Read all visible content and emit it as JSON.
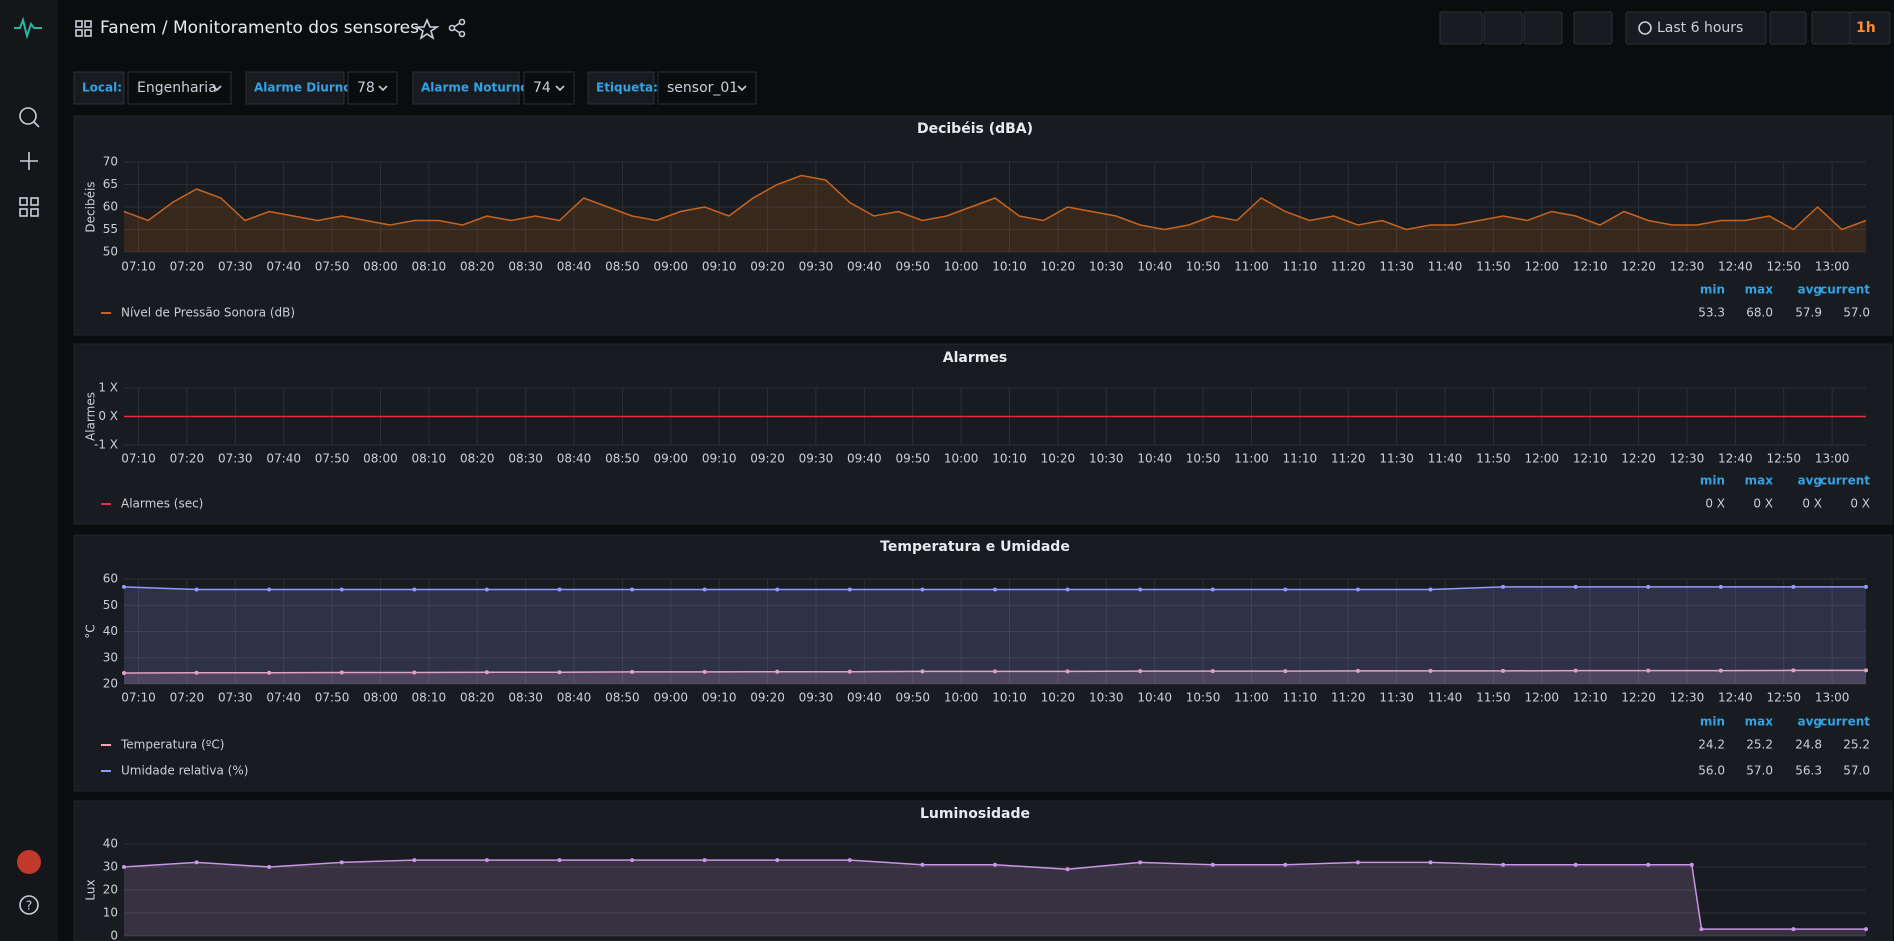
{
  "header": {
    "title": "Fanem / Monitoramento dos sensores",
    "time_range": "Last 6 hours",
    "refresh": "1h"
  },
  "variables": [
    {
      "label": "Local:",
      "value": "Engenharia"
    },
    {
      "label": "Alarme Diurno:",
      "value": 78
    },
    {
      "label": "Alarme Noturno:",
      "value": 74
    },
    {
      "label": "Etiqueta:",
      "value": "sensor_01"
    }
  ],
  "chart_data": [
    {
      "type": "line",
      "title": "Decibéis (dBA)",
      "y_label": "Decibéis",
      "x": [
        "07:07",
        "07:12",
        "07:17",
        "07:22",
        "07:27",
        "07:32",
        "07:37",
        "07:42",
        "07:47",
        "07:52",
        "07:57",
        "08:02",
        "08:07",
        "08:12",
        "08:17",
        "08:22",
        "08:27",
        "08:32",
        "08:37",
        "08:42",
        "08:47",
        "08:52",
        "08:57",
        "09:02",
        "09:07",
        "09:12",
        "09:17",
        "09:22",
        "09:27",
        "09:32",
        "09:37",
        "09:42",
        "09:47",
        "09:52",
        "09:57",
        "10:02",
        "10:07",
        "10:12",
        "10:17",
        "10:22",
        "10:27",
        "10:32",
        "10:37",
        "10:42",
        "10:47",
        "10:52",
        "10:57",
        "11:02",
        "11:07",
        "11:12",
        "11:17",
        "11:22",
        "11:27",
        "11:32",
        "11:37",
        "11:42",
        "11:47",
        "11:52",
        "11:57",
        "12:02",
        "12:07",
        "12:12",
        "12:17",
        "12:22",
        "12:27",
        "12:32",
        "12:37",
        "12:42",
        "12:47",
        "12:52",
        "12:57",
        "13:02",
        "13:07"
      ],
      "series": [
        {
          "name": "Nível de Pressão Sonora (dB)",
          "color": "#c8641e",
          "values": [
            59,
            57,
            61,
            64,
            62,
            57,
            59,
            58,
            57,
            58,
            57,
            56,
            57,
            57,
            56,
            58,
            57,
            58,
            57,
            62,
            60,
            58,
            57,
            59,
            60,
            58,
            62,
            65,
            67,
            66,
            61,
            58,
            59,
            57,
            58,
            60,
            62,
            58,
            57,
            60,
            59,
            58,
            56,
            55,
            56,
            58,
            57,
            62,
            59,
            57,
            58,
            56,
            57,
            55,
            56,
            56,
            57,
            58,
            57,
            59,
            58,
            56,
            59,
            57,
            56,
            56,
            57,
            57,
            58,
            55,
            60,
            55,
            57
          ],
          "stats": [
            "53.3",
            "68.0",
            "57.9",
            "57.0"
          ]
        }
      ],
      "stat_names": [
        "min",
        "max",
        "avg",
        "current"
      ],
      "fill": true,
      "points": false,
      "xlim": [
        "07:07",
        "13:07"
      ],
      "ylim": [
        50,
        70
      ],
      "yticks": [
        50,
        55,
        60,
        65,
        70
      ],
      "xticks": [
        "07:10",
        "07:20",
        "07:30",
        "07:40",
        "07:50",
        "08:00",
        "08:10",
        "08:20",
        "08:30",
        "08:40",
        "08:50",
        "09:00",
        "09:10",
        "09:20",
        "09:30",
        "09:40",
        "09:50",
        "10:00",
        "10:10",
        "10:20",
        "10:30",
        "10:40",
        "10:50",
        "11:00",
        "11:10",
        "11:20",
        "11:30",
        "11:40",
        "11:50",
        "12:00",
        "12:10",
        "12:20",
        "12:30",
        "12:40",
        "12:50",
        "13:00"
      ],
      "grid": true
    },
    {
      "type": "line",
      "title": "Alarmes",
      "y_label": "Alarmes",
      "x": [
        "07:07",
        "13:07"
      ],
      "series": [
        {
          "name": "Alarmes (sec)",
          "color": "#e02f44",
          "values": [
            0,
            0
          ],
          "stats": [
            "0 X",
            "0 X",
            "0 X",
            "0 X"
          ]
        }
      ],
      "stat_names": [
        "min",
        "max",
        "avg",
        "current"
      ],
      "fill": false,
      "points": false,
      "xlim": [
        "07:07",
        "13:07"
      ],
      "ylim": [
        -1,
        1
      ],
      "yticks": [
        {
          "value": -1,
          "label": "-1 X"
        },
        {
          "value": 0,
          "label": "0 X"
        },
        {
          "value": 1,
          "label": "1 X"
        }
      ],
      "xticks": [
        "07:10",
        "07:20",
        "07:30",
        "07:40",
        "07:50",
        "08:00",
        "08:10",
        "08:20",
        "08:30",
        "08:40",
        "08:50",
        "09:00",
        "09:10",
        "09:20",
        "09:30",
        "09:40",
        "09:50",
        "10:00",
        "10:10",
        "10:20",
        "10:30",
        "10:40",
        "10:50",
        "11:00",
        "11:10",
        "11:20",
        "11:30",
        "11:40",
        "11:50",
        "12:00",
        "12:10",
        "12:20",
        "12:30",
        "12:40",
        "12:50",
        "13:00"
      ],
      "grid": true
    },
    {
      "type": "line",
      "title": "Temperatura e Umidade",
      "y_label": "°C",
      "x": [
        "07:07",
        "07:22",
        "07:37",
        "07:52",
        "08:07",
        "08:22",
        "08:37",
        "08:52",
        "09:07",
        "09:22",
        "09:37",
        "09:52",
        "10:07",
        "10:22",
        "10:37",
        "10:52",
        "11:07",
        "11:22",
        "11:37",
        "11:52",
        "12:07",
        "12:22",
        "12:37",
        "12:52",
        "13:07"
      ],
      "series": [
        {
          "name": "Temperatura (ºC)",
          "color": "#f4a3b8",
          "values": [
            24.2,
            24.3,
            24.3,
            24.4,
            24.4,
            24.5,
            24.5,
            24.6,
            24.6,
            24.7,
            24.7,
            24.8,
            24.8,
            24.8,
            24.9,
            24.9,
            24.9,
            25.0,
            25.0,
            25.0,
            25.1,
            25.1,
            25.1,
            25.2,
            25.2
          ],
          "stats": [
            "24.2",
            "25.2",
            "24.8",
            "25.2"
          ]
        },
        {
          "name": "Umidade relativa (%)",
          "color": "#8f9bff",
          "values": [
            57,
            56,
            56,
            56,
            56,
            56,
            56,
            56,
            56,
            56,
            56,
            56,
            56,
            56,
            56,
            56,
            56,
            56,
            56,
            57,
            57,
            57,
            57,
            57,
            57
          ],
          "stats": [
            "56.0",
            "57.0",
            "56.3",
            "57.0"
          ]
        }
      ],
      "stat_names": [
        "min",
        "max",
        "avg",
        "current"
      ],
      "fill": true,
      "points": true,
      "xlim": [
        "07:07",
        "13:07"
      ],
      "ylim": [
        20,
        60
      ],
      "yticks": [
        20,
        30,
        40,
        50,
        60
      ],
      "xticks": [
        "07:10",
        "07:20",
        "07:30",
        "07:40",
        "07:50",
        "08:00",
        "08:10",
        "08:20",
        "08:30",
        "08:40",
        "08:50",
        "09:00",
        "09:10",
        "09:20",
        "09:30",
        "09:40",
        "09:50",
        "10:00",
        "10:10",
        "10:20",
        "10:30",
        "10:40",
        "10:50",
        "11:00",
        "11:10",
        "11:20",
        "11:30",
        "11:40",
        "11:50",
        "12:00",
        "12:10",
        "12:20",
        "12:30",
        "12:40",
        "12:50",
        "13:00"
      ],
      "grid": true
    },
    {
      "type": "line",
      "title": "Luminosidade",
      "y_label": "Lux",
      "x": [
        "07:07",
        "07:22",
        "07:37",
        "07:52",
        "08:07",
        "08:22",
        "08:37",
        "08:52",
        "09:07",
        "09:22",
        "09:37",
        "09:52",
        "10:07",
        "10:22",
        "10:37",
        "10:52",
        "11:07",
        "11:22",
        "11:37",
        "11:52",
        "12:07",
        "12:22",
        "12:31",
        "12:33",
        "12:52",
        "13:07"
      ],
      "series": [
        {
          "name": "Luminosidade",
          "color": "#ca95e5",
          "values": [
            30,
            32,
            30,
            32,
            33,
            33,
            33,
            33,
            33,
            33,
            33,
            31,
            31,
            29,
            32,
            31,
            31,
            32,
            32,
            31,
            31,
            31,
            31,
            3,
            3,
            3
          ]
        }
      ],
      "fill": true,
      "points": true,
      "xlim": [
        "07:07",
        "13:07"
      ],
      "ylim": [
        0,
        40
      ],
      "yticks": [
        0,
        10,
        20,
        30,
        40
      ],
      "grid": true
    }
  ]
}
